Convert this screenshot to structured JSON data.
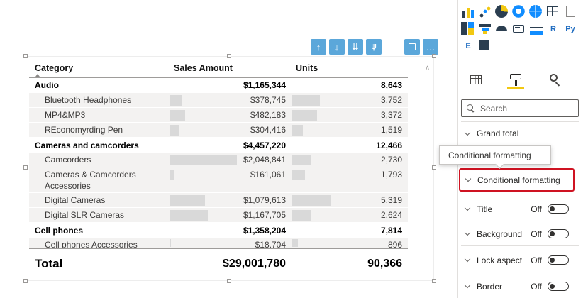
{
  "canvas": {
    "drill_toolbar": {
      "buttons": [
        {
          "name": "drill-up-button",
          "glyph": "↑"
        },
        {
          "name": "drill-down-button",
          "glyph": "↓"
        },
        {
          "name": "go-to-next-level-button",
          "glyph": "⇊"
        },
        {
          "name": "expand-all-button",
          "glyph": "⋔",
          "rotate": true
        },
        {
          "name": "focus-mode-button",
          "shape": "focus",
          "gap": true
        },
        {
          "name": "more-options-button",
          "glyph": "…"
        }
      ]
    },
    "visual": {
      "columns": [
        {
          "label": "Category"
        },
        {
          "label": "Sales Amount"
        },
        {
          "label": "Units"
        }
      ],
      "sort": {
        "column": "Category",
        "direction": "ascending"
      },
      "rows": [
        {
          "category": "Audio",
          "sales": "$1,165,344",
          "units": "8,643",
          "bold": true
        },
        {
          "category": "Bluetooth Headphones",
          "sales": "$378,745",
          "units": "3,752",
          "sales_bar": 18,
          "units_bar": 40
        },
        {
          "category": "MP4&MP3",
          "sales": "$482,183",
          "units": "3,372",
          "sales_bar": 22,
          "units_bar": 36
        },
        {
          "category": "REconomyrding Pen",
          "sales": "$304,416",
          "units": "1,519",
          "sales_bar": 14,
          "units_bar": 16
        },
        {
          "category": "Cameras and camcorders",
          "sales": "$4,457,220",
          "units": "12,466",
          "bold": true
        },
        {
          "category": "Camcorders",
          "sales": "$2,048,841",
          "units": "2,730",
          "sales_bar": 95,
          "units_bar": 28
        },
        {
          "category": "Cameras & Camcorders Accessories",
          "sales": "$161,061",
          "units": "1,793",
          "sales_bar": 7,
          "units_bar": 19,
          "tall": true
        },
        {
          "category": "Digital Cameras",
          "sales": "$1,079,613",
          "units": "5,319",
          "sales_bar": 50,
          "units_bar": 55
        },
        {
          "category": "Digital SLR Cameras",
          "sales": "$1,167,705",
          "units": "2,624",
          "sales_bar": 54,
          "units_bar": 27
        },
        {
          "category": "Cell phones",
          "sales": "$1,358,204",
          "units": "7,814",
          "bold": true
        },
        {
          "category": "Cell phones Accessories",
          "sales": "$18,704",
          "units": "896",
          "sales_bar": 2,
          "units_bar": 9,
          "clipped": true
        }
      ],
      "total": {
        "label": "Total",
        "sales": "$29,001,780",
        "units": "90,366"
      },
      "scrollbar_icon": "∧"
    }
  },
  "panel": {
    "visual_gallery": {
      "icons": [
        {
          "name": "column-chart-icon",
          "kind": "bars"
        },
        {
          "name": "scatter-chart-icon",
          "kind": "scatter"
        },
        {
          "name": "pie-chart-icon",
          "kind": "pie"
        },
        {
          "name": "donut-chart-icon",
          "kind": "donut"
        },
        {
          "name": "map-icon",
          "kind": "globe"
        },
        {
          "name": "matrix-icon",
          "kind": "grid"
        },
        {
          "name": "report-page-icon",
          "kind": "doc"
        },
        {
          "name": "treemap-icon",
          "kind": "treemap"
        },
        {
          "name": "funnel-chart-icon",
          "kind": "funnel"
        },
        {
          "name": "gauge-icon",
          "kind": "gauge"
        },
        {
          "name": "card-icon",
          "kind": "card"
        },
        {
          "name": "kpi-icon",
          "kind": "kpi"
        },
        {
          "name": "r-script-icon",
          "kind": "letter",
          "glyph": "R"
        },
        {
          "name": "python-visual-icon",
          "kind": "letter",
          "glyph": "Py"
        },
        {
          "name": "power-apps-icon",
          "kind": "letter",
          "glyph": "E"
        },
        {
          "name": "custom-visual-icon",
          "kind": "mini"
        }
      ]
    },
    "tabs": [
      {
        "name": "fields-tab",
        "selected": false
      },
      {
        "name": "format-tab",
        "selected": true
      },
      {
        "name": "analytics-tab",
        "selected": false
      }
    ],
    "search": {
      "placeholder": "Search"
    },
    "sections": [
      {
        "label": "Grand total",
        "type": "chevron"
      },
      {
        "label": "Conditional formatting",
        "type": "chevron",
        "highlighted": true
      },
      {
        "label": "Title",
        "type": "toggle",
        "state": "Off"
      },
      {
        "label": "Background",
        "type": "toggle",
        "state": "Off"
      },
      {
        "label": "Lock aspect",
        "type": "toggle",
        "state": "Off"
      },
      {
        "label": "Border",
        "type": "toggle",
        "state": "Off"
      }
    ],
    "tooltip": {
      "text": "Conditional formatting"
    },
    "colors": {
      "accent_yellow": "#f2c811",
      "highlight_red": "#cf1322",
      "drill_blue": "#5ba7da",
      "data_bar_gray": "#d9d9d9"
    }
  }
}
